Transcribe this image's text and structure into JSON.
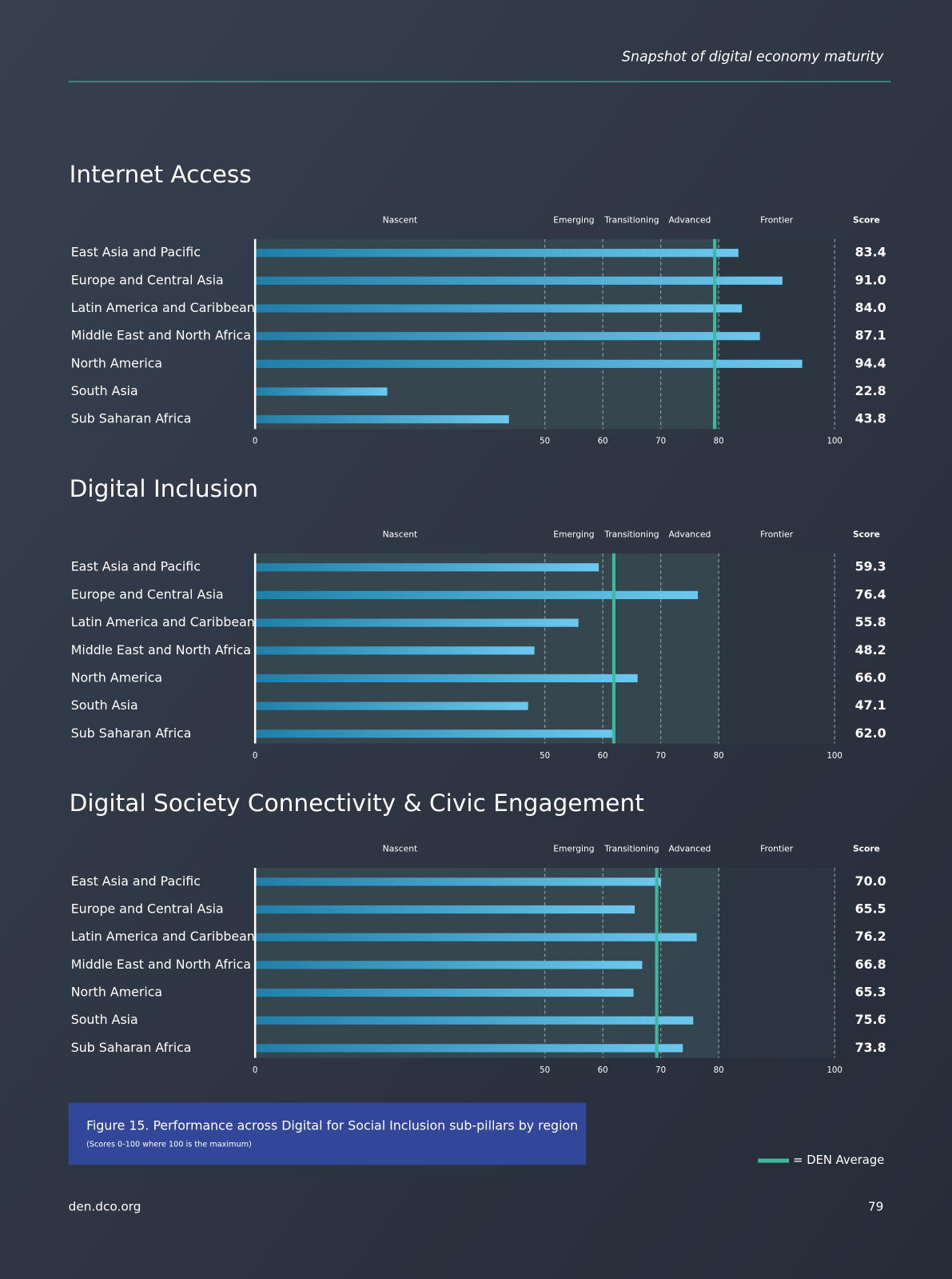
{
  "header": {
    "title": "Snapshot of digital economy maturity"
  },
  "chart_data": [
    {
      "type": "bar",
      "title": "Internet Access",
      "categories": [
        "East Asia and Pacific",
        "Europe and Central Asia",
        "Latin America and Caribbean",
        "Middle East and North Africa",
        "North America",
        "South Asia",
        "Sub Saharan Africa"
      ],
      "values": [
        83.4,
        91.0,
        84.0,
        87.1,
        94.4,
        22.8,
        43.8
      ],
      "value_labels": [
        "83.4",
        "91.0",
        "84.0",
        "87.1",
        "94.4",
        "22.8",
        "43.8"
      ],
      "score_label": "Score",
      "bands": [
        {
          "label": "Nascent",
          "from": 0,
          "to": 50
        },
        {
          "label": "Emerging",
          "from": 50,
          "to": 60
        },
        {
          "label": "Transitioning",
          "from": 60,
          "to": 70
        },
        {
          "label": "Advanced",
          "from": 70,
          "to": 80
        },
        {
          "label": "Frontier",
          "from": 80,
          "to": 100
        }
      ],
      "average": 79.3,
      "xlim": [
        0,
        100
      ],
      "xticks": [
        0,
        50,
        60,
        70,
        80,
        100
      ],
      "grid": true,
      "color": "#6cc8ee",
      "average_color": "#3fb8a0"
    },
    {
      "type": "bar",
      "title": "Digital Inclusion",
      "categories": [
        "East Asia and Pacific",
        "Europe and Central Asia",
        "Latin America and Caribbean",
        "Middle East and North Africa",
        "North America",
        "South Asia",
        "Sub Saharan Africa"
      ],
      "values": [
        59.3,
        76.4,
        55.8,
        48.2,
        66.0,
        47.1,
        62.0
      ],
      "value_labels": [
        "59.3",
        "76.4",
        "55.8",
        "48.2",
        "66.0",
        "47.1",
        "62.0"
      ],
      "score_label": "Score",
      "bands": [
        {
          "label": "Nascent",
          "from": 0,
          "to": 50
        },
        {
          "label": "Emerging",
          "from": 50,
          "to": 60
        },
        {
          "label": "Transitioning",
          "from": 60,
          "to": 70
        },
        {
          "label": "Advanced",
          "from": 70,
          "to": 80
        },
        {
          "label": "Frontier",
          "from": 80,
          "to": 100
        }
      ],
      "average": 61.9,
      "xlim": [
        0,
        100
      ],
      "xticks": [
        0,
        50,
        60,
        70,
        80,
        100
      ],
      "grid": true,
      "color": "#6cc8ee",
      "average_color": "#3fb8a0"
    },
    {
      "type": "bar",
      "title": "Digital Society Connectivity & Civic Engagement",
      "categories": [
        "East Asia and Pacific",
        "Europe and Central Asia",
        "Latin America and Caribbean",
        "Middle East and North Africa",
        "North America",
        "South Asia",
        "Sub Saharan Africa"
      ],
      "values": [
        70.0,
        65.5,
        76.2,
        66.8,
        65.3,
        75.6,
        73.8
      ],
      "value_labels": [
        "70.0",
        "65.5",
        "76.2",
        "66.8",
        "65.3",
        "75.6",
        "73.8"
      ],
      "score_label": "Score",
      "bands": [
        {
          "label": "Nascent",
          "from": 0,
          "to": 50
        },
        {
          "label": "Emerging",
          "from": 50,
          "to": 60
        },
        {
          "label": "Transitioning",
          "from": 60,
          "to": 70
        },
        {
          "label": "Advanced",
          "from": 70,
          "to": 80
        },
        {
          "label": "Frontier",
          "from": 80,
          "to": 100
        }
      ],
      "average": 69.3,
      "xlim": [
        0,
        100
      ],
      "xticks": [
        0,
        50,
        60,
        70,
        80,
        100
      ],
      "grid": true,
      "color": "#6cc8ee",
      "average_color": "#3fb8a0"
    }
  ],
  "caption": {
    "title": "Figure 15. Performance across Digital for Social Inclusion sub-pillars by region",
    "note": "(Scores 0-100 where 100 is the maximum)"
  },
  "legend": {
    "label": "= DEN Average"
  },
  "footer": {
    "site": "den.dco.org",
    "page": "79"
  }
}
